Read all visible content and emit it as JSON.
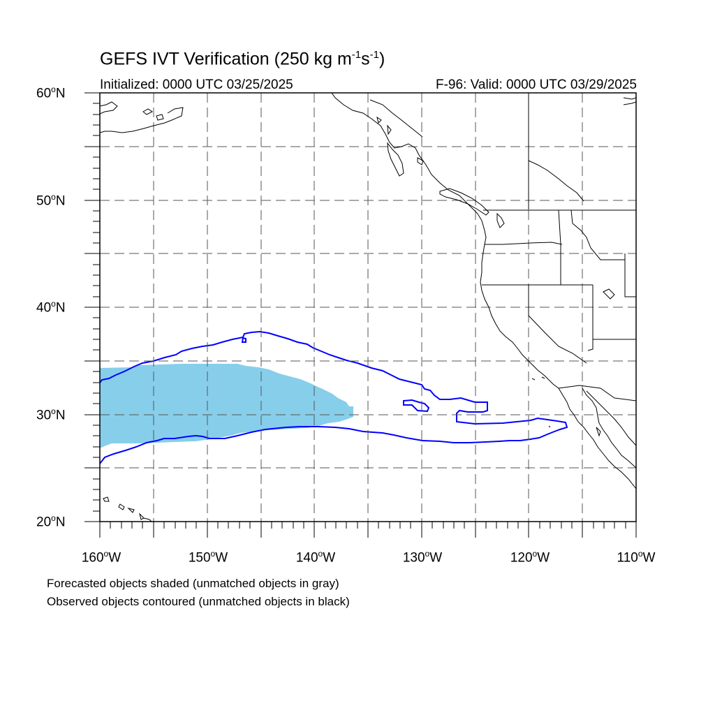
{
  "title": {
    "main": "GEFS IVT Verification (250 kg m",
    "exp1": "-1",
    "mid": "s",
    "exp2": "-1",
    "end": ")"
  },
  "subtitle": {
    "initialized": "Initialized: 0000 UTC 03/25/2025",
    "valid": "F-96: Valid: 0000 UTC 03/29/2025"
  },
  "axes": {
    "lat_range": [
      20,
      60
    ],
    "lon_range": [
      -160,
      -110
    ],
    "lat_labels": [
      {
        "value": 60,
        "text": "60",
        "suffix": "N"
      },
      {
        "value": 50,
        "text": "50",
        "suffix": "N"
      },
      {
        "value": 40,
        "text": "40",
        "suffix": "N"
      },
      {
        "value": 30,
        "text": "30",
        "suffix": "N"
      },
      {
        "value": 20,
        "text": "20",
        "suffix": "N"
      }
    ],
    "lon_labels": [
      {
        "value": -160,
        "text": "160",
        "suffix": "W"
      },
      {
        "value": -150,
        "text": "150",
        "suffix": "W"
      },
      {
        "value": -140,
        "text": "140",
        "suffix": "W"
      },
      {
        "value": -130,
        "text": "130",
        "suffix": "W"
      },
      {
        "value": -120,
        "text": "120",
        "suffix": "W"
      },
      {
        "value": -110,
        "text": "110",
        "suffix": "W"
      }
    ],
    "degree_symbol": "o",
    "grid_spacing_deg": 5,
    "grid_style": "dashed"
  },
  "legend": {
    "line1": "Forecasted objects shaded (unmatched objects in gray)",
    "line2": "Observed objects contoured (unmatched objects in black)"
  },
  "colors": {
    "forecast_fill": "#87ceeb",
    "observed_contour": "#0000ff",
    "coastline": "#000000",
    "grid": "#555555"
  }
}
